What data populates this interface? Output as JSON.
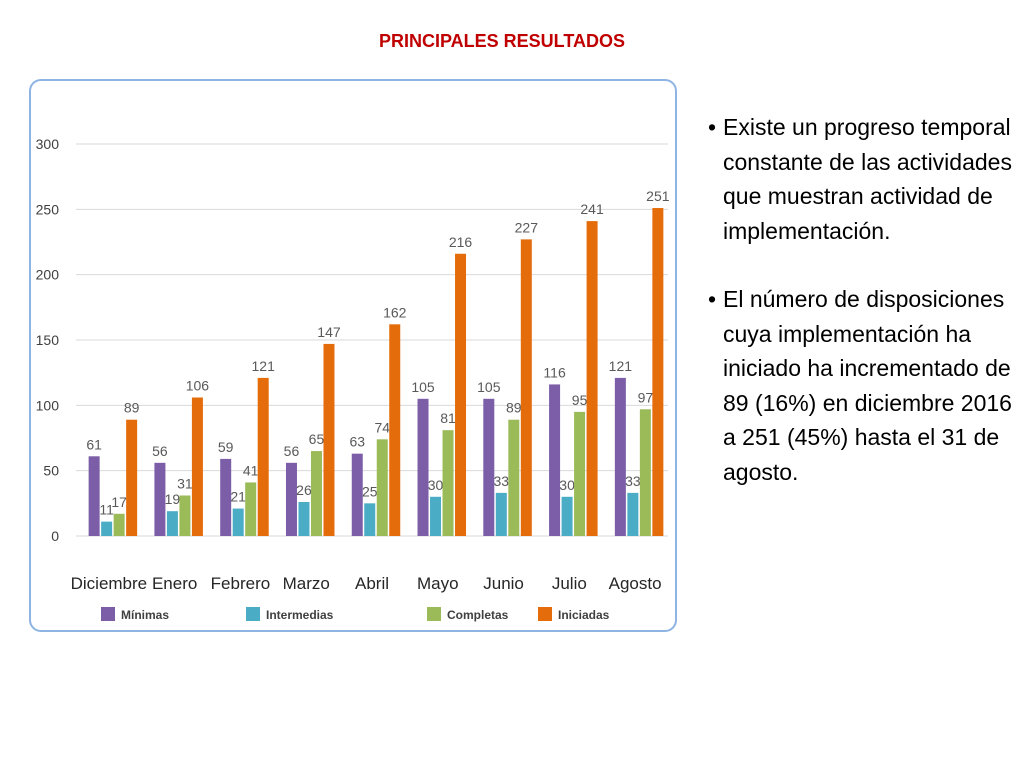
{
  "title": "PRINCIPALES RESULTADOS",
  "bullets": [
    {
      "text": "Existe un progreso temporal constante de las actividades que muestran actividad de implementación."
    },
    {
      "text": "El número de disposiciones cuya implementación ha iniciado ha incrementado de 89 (16%) en diciembre 2016 a 251 (45%) hasta el 31 de agosto."
    }
  ],
  "bullet_symbol": "•",
  "chart_data": {
    "type": "bar",
    "categories": [
      "Diciembre",
      "Enero",
      "Febrero",
      "Marzo",
      "Abril",
      "Mayo",
      "Junio",
      "Julio",
      "Agosto"
    ],
    "series": [
      {
        "name": "Mínimas",
        "color": "#7b5ea7",
        "values": [
          61,
          56,
          59,
          56,
          63,
          105,
          105,
          116,
          121
        ]
      },
      {
        "name": "Intermedias",
        "color": "#4bacc6",
        "values": [
          11,
          19,
          21,
          26,
          25,
          30,
          33,
          30,
          33
        ]
      },
      {
        "name": "Completas",
        "color": "#9bbb59",
        "values": [
          17,
          31,
          41,
          65,
          74,
          81,
          89,
          95,
          97
        ]
      },
      {
        "name": "Iniciadas",
        "color": "#e46c0a",
        "values": [
          89,
          106,
          121,
          147,
          162,
          216,
          227,
          241,
          251
        ]
      }
    ],
    "ylim": [
      0,
      300
    ],
    "yticks": [
      0,
      50,
      100,
      150,
      200,
      250,
      300
    ],
    "grid": true,
    "legend_position": "bottom",
    "xlabel": "",
    "ylabel": ""
  }
}
